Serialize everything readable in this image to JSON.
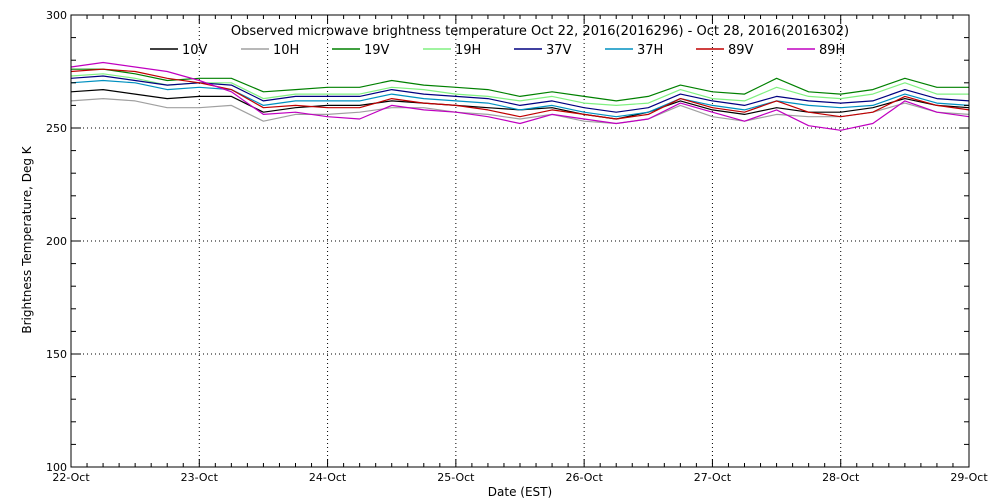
{
  "chart_data": {
    "type": "line",
    "title": "Observed microwave brightness temperature Oct 22, 2016(2016296) - Oct 28, 2016(2016302)",
    "xlabel": "Date (EST)",
    "ylabel": "Brightness Temperature, Deg K",
    "x_ticks": [
      "22-Oct",
      "23-Oct",
      "24-Oct",
      "25-Oct",
      "26-Oct",
      "27-Oct",
      "28-Oct",
      "29-Oct"
    ],
    "x_range": [
      "22-Oct",
      "29-Oct"
    ],
    "y_ticks": [
      100,
      150,
      200,
      250,
      300
    ],
    "ylim": [
      100,
      300
    ],
    "grid": "dotted",
    "legend_position": "top",
    "x": [
      "22-Oct 00:00",
      "22-Oct 06:00",
      "22-Oct 12:00",
      "22-Oct 18:00",
      "23-Oct 00:00",
      "23-Oct 06:00",
      "23-Oct 12:00",
      "23-Oct 18:00",
      "24-Oct 00:00",
      "24-Oct 06:00",
      "24-Oct 12:00",
      "24-Oct 18:00",
      "25-Oct 00:00",
      "25-Oct 06:00",
      "25-Oct 12:00",
      "25-Oct 18:00",
      "26-Oct 00:00",
      "26-Oct 06:00",
      "26-Oct 12:00",
      "26-Oct 18:00",
      "27-Oct 00:00",
      "27-Oct 06:00",
      "27-Oct 12:00",
      "27-Oct 18:00",
      "28-Oct 00:00",
      "28-Oct 06:00",
      "28-Oct 12:00",
      "28-Oct 18:00",
      "29-Oct 00:00"
    ],
    "series": [
      {
        "name": "10V",
        "color": "#000000",
        "values": [
          266,
          267,
          265,
          263,
          264,
          264,
          257,
          259,
          260,
          260,
          262,
          261,
          260,
          259,
          258,
          259,
          256,
          254,
          257,
          262,
          258,
          256,
          259,
          257,
          257,
          259,
          263,
          260,
          259
        ]
      },
      {
        "name": "10H",
        "color": "#a0a0a0",
        "values": [
          262,
          263,
          262,
          259,
          259,
          260,
          253,
          256,
          256,
          257,
          259,
          259,
          257,
          256,
          254,
          256,
          253,
          252,
          254,
          260,
          255,
          253,
          256,
          255,
          255,
          257,
          261,
          257,
          256
        ]
      },
      {
        "name": "19V",
        "color": "#008000",
        "values": [
          276,
          276,
          274,
          271,
          272,
          272,
          266,
          267,
          268,
          268,
          271,
          269,
          268,
          267,
          264,
          266,
          264,
          262,
          264,
          269,
          266,
          265,
          272,
          266,
          265,
          267,
          272,
          268,
          268
        ]
      },
      {
        "name": "19H",
        "color": "#80f080",
        "values": [
          273,
          274,
          272,
          269,
          270,
          270,
          263,
          265,
          265,
          265,
          268,
          267,
          265,
          264,
          262,
          264,
          261,
          260,
          261,
          267,
          263,
          262,
          268,
          264,
          263,
          265,
          270,
          265,
          265
        ]
      },
      {
        "name": "37V",
        "color": "#000080",
        "values": [
          272,
          273,
          271,
          269,
          270,
          269,
          262,
          264,
          264,
          264,
          267,
          265,
          264,
          263,
          260,
          262,
          259,
          257,
          259,
          265,
          262,
          260,
          264,
          262,
          261,
          262,
          267,
          263,
          262
        ]
      },
      {
        "name": "37H",
        "color": "#0090c0",
        "values": [
          270,
          271,
          270,
          267,
          268,
          267,
          260,
          262,
          262,
          262,
          265,
          263,
          262,
          261,
          258,
          260,
          257,
          255,
          257,
          263,
          260,
          258,
          262,
          260,
          259,
          260,
          265,
          261,
          260
        ]
      },
      {
        "name": "89V",
        "color": "#c00000",
        "values": [
          275,
          276,
          275,
          272,
          270,
          267,
          259,
          260,
          259,
          259,
          263,
          261,
          260,
          258,
          255,
          258,
          256,
          254,
          256,
          263,
          259,
          257,
          262,
          257,
          255,
          257,
          264,
          260,
          258
        ]
      },
      {
        "name": "89H",
        "color": "#c000c0",
        "values": [
          277,
          279,
          277,
          275,
          271,
          266,
          256,
          257,
          255,
          254,
          260,
          258,
          257,
          255,
          252,
          256,
          254,
          252,
          254,
          261,
          257,
          253,
          258,
          251,
          249,
          252,
          262,
          257,
          255
        ]
      }
    ]
  }
}
